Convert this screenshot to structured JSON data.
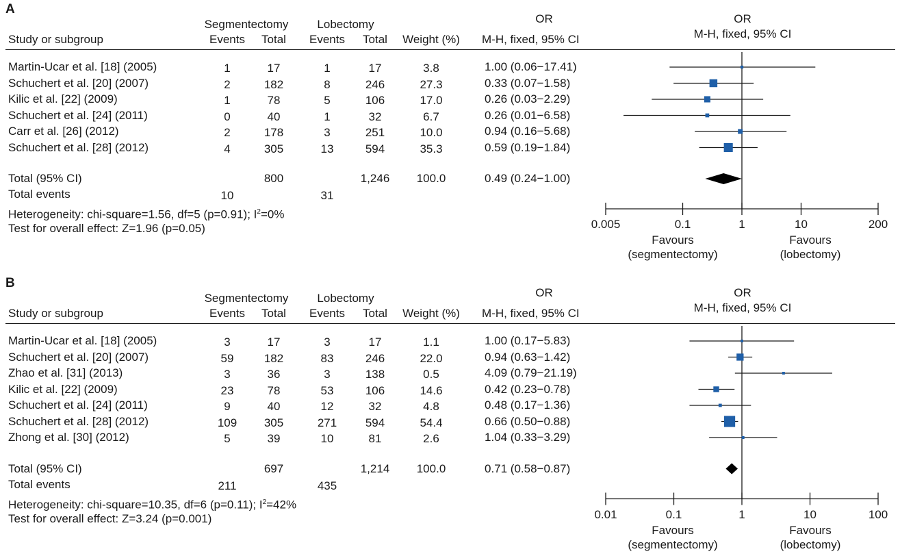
{
  "chart_data": [
    {
      "type": "forest",
      "panel": "A",
      "headers": {
        "study": "Study or subgroup",
        "group1": "Segmentectomy",
        "group2": "Lobectomy",
        "events": "Events",
        "total": "Total",
        "weight": "Weight (%)",
        "or_title": "OR",
        "or_method": "M-H, fixed, 95% CI",
        "plot_title": "OR",
        "plot_method": "M-H, fixed, 95% CI"
      },
      "studies": [
        {
          "name": "Martin-Ucar et al. [18] (2005)",
          "seg_events": "1",
          "seg_total": "17",
          "lob_events": "1",
          "lob_total": "17",
          "weight": "3.8",
          "ci_text": "1.00 (0.06−17.41)",
          "or": 1.0,
          "lo": 0.06,
          "hi": 17.41,
          "w": 3.8
        },
        {
          "name": "Schuchert et al. [20] (2007)",
          "seg_events": "2",
          "seg_total": "182",
          "lob_events": "8",
          "lob_total": "246",
          "weight": "27.3",
          "ci_text": "0.33 (0.07−1.58)",
          "or": 0.33,
          "lo": 0.07,
          "hi": 1.58,
          "w": 27.3
        },
        {
          "name": "Kilic et al. [22] (2009)",
          "seg_events": "1",
          "seg_total": "78",
          "lob_events": "5",
          "lob_total": "106",
          "weight": "17.0",
          "ci_text": "0.26 (0.03−2.29)",
          "or": 0.26,
          "lo": 0.03,
          "hi": 2.29,
          "w": 17.0
        },
        {
          "name": "Schuchert et al. [24] (2011)",
          "seg_events": "0",
          "seg_total": "40",
          "lob_events": "1",
          "lob_total": "32",
          "weight": "6.7",
          "ci_text": "0.26 (0.01−6.58)",
          "or": 0.26,
          "lo": 0.01,
          "hi": 6.58,
          "w": 6.7
        },
        {
          "name": "Carr et al. [26] (2012)",
          "seg_events": "2",
          "seg_total": "178",
          "lob_events": "3",
          "lob_total": "251",
          "weight": "10.0",
          "ci_text": "0.94 (0.16−5.68)",
          "or": 0.94,
          "lo": 0.16,
          "hi": 5.68,
          "w": 10.0
        },
        {
          "name": "Schuchert et al. [28] (2012)",
          "seg_events": "4",
          "seg_total": "305",
          "lob_events": "13",
          "lob_total": "594",
          "weight": "35.3",
          "ci_text": "0.59 (0.19−1.84)",
          "or": 0.59,
          "lo": 0.19,
          "hi": 1.84,
          "w": 35.3
        }
      ],
      "total": {
        "label": "Total (95% CI)",
        "seg_total": "800",
        "lob_total": "1,246",
        "weight": "100.0",
        "ci_text": "0.49 (0.24−1.00)",
        "or": 0.49,
        "lo": 0.24,
        "hi": 1.0
      },
      "total_events": {
        "label": "Total events",
        "seg": "10",
        "lob": "31"
      },
      "heterogeneity": {
        "prefix": "Heterogeneity: chi-square=1.56, df=5 (p=0.91); I",
        "sup": "2",
        "suffix": "=0%"
      },
      "overall_effect": "Test for overall effect: Z=1.96 (p=0.05)",
      "axis": {
        "scale": "log",
        "min": 0.005,
        "max": 200,
        "ticks": [
          0.005,
          0.1,
          1,
          10,
          200
        ],
        "tick_labels": [
          "0.005",
          "0.1",
          "1",
          "10",
          "200"
        ]
      },
      "favours_left": [
        "Favours",
        "(segmentectomy)"
      ],
      "favours_right": [
        "Favours",
        "(lobectomy)"
      ]
    },
    {
      "type": "forest",
      "panel": "B",
      "headers": {
        "study": "Study or subgroup",
        "group1": "Segmentectomy",
        "group2": "Lobectomy",
        "events": "Events",
        "total": "Total",
        "weight": "Weight (%)",
        "or_title": "OR",
        "or_method": "M-H, fixed, 95% CI",
        "plot_title": "OR",
        "plot_method": "M-H, fixed, 95% CI"
      },
      "studies": [
        {
          "name": "Martin-Ucar et al. [18] (2005)",
          "seg_events": "3",
          "seg_total": "17",
          "lob_events": "3",
          "lob_total": "17",
          "weight": "1.1",
          "ci_text": "1.00 (0.17−5.83)",
          "or": 1.0,
          "lo": 0.17,
          "hi": 5.83,
          "w": 1.1
        },
        {
          "name": "Schuchert et al. [20] (2007)",
          "seg_events": "59",
          "seg_total": "182",
          "lob_events": "83",
          "lob_total": "246",
          "weight": "22.0",
          "ci_text": "0.94 (0.63−1.42)",
          "or": 0.94,
          "lo": 0.63,
          "hi": 1.42,
          "w": 22.0
        },
        {
          "name": "Zhao et al. [31] (2013)",
          "seg_events": "3",
          "seg_total": "36",
          "lob_events": "3",
          "lob_total": "138",
          "weight": "0.5",
          "ci_text": "4.09 (0.79−21.19)",
          "or": 4.09,
          "lo": 0.79,
          "hi": 21.19,
          "w": 0.5
        },
        {
          "name": "Kilic et al. [22] (2009)",
          "seg_events": "23",
          "seg_total": "78",
          "lob_events": "53",
          "lob_total": "106",
          "weight": "14.6",
          "ci_text": "0.42 (0.23−0.78)",
          "or": 0.42,
          "lo": 0.23,
          "hi": 0.78,
          "w": 14.6
        },
        {
          "name": "Schuchert et al. [24] (2011)",
          "seg_events": "9",
          "seg_total": "40",
          "lob_events": "12",
          "lob_total": "32",
          "weight": "4.8",
          "ci_text": "0.48 (0.17−1.36)",
          "or": 0.48,
          "lo": 0.17,
          "hi": 1.36,
          "w": 4.8
        },
        {
          "name": "Schuchert et al. [28] (2012)",
          "seg_events": "109",
          "seg_total": "305",
          "lob_events": "271",
          "lob_total": "594",
          "weight": "54.4",
          "ci_text": "0.66 (0.50−0.88)",
          "or": 0.66,
          "lo": 0.5,
          "hi": 0.88,
          "w": 54.4
        },
        {
          "name": "Zhong et al. [30] (2012)",
          "seg_events": "5",
          "seg_total": "39",
          "lob_events": "10",
          "lob_total": "81",
          "weight": "2.6",
          "ci_text": "1.04 (0.33−3.29)",
          "or": 1.04,
          "lo": 0.33,
          "hi": 3.29,
          "w": 2.6
        }
      ],
      "total": {
        "label": "Total (95% CI)",
        "seg_total": "697",
        "lob_total": "1,214",
        "weight": "100.0",
        "ci_text": "0.71 (0.58−0.87)",
        "or": 0.71,
        "lo": 0.58,
        "hi": 0.87
      },
      "total_events": {
        "label": "Total events",
        "seg": "211",
        "lob": "435"
      },
      "heterogeneity": {
        "prefix": "Heterogeneity: chi-square=10.35, df=6 (p=0.11); I",
        "sup": "2",
        "suffix": "=42%"
      },
      "overall_effect": "Test for overall effect: Z=3.24 (p=0.001)",
      "axis": {
        "scale": "log",
        "min": 0.01,
        "max": 100,
        "ticks": [
          0.01,
          0.1,
          1,
          10,
          100
        ],
        "tick_labels": [
          "0.01",
          "0.1",
          "1",
          "10",
          "100"
        ]
      },
      "favours_left": [
        "Favours",
        "(segmentectomy)"
      ],
      "favours_right": [
        "Favours",
        "(lobectomy)"
      ]
    }
  ],
  "colors": {
    "study_marker": "#1f5fa8",
    "total_marker": "#000000",
    "line": "#1a1a1a"
  }
}
